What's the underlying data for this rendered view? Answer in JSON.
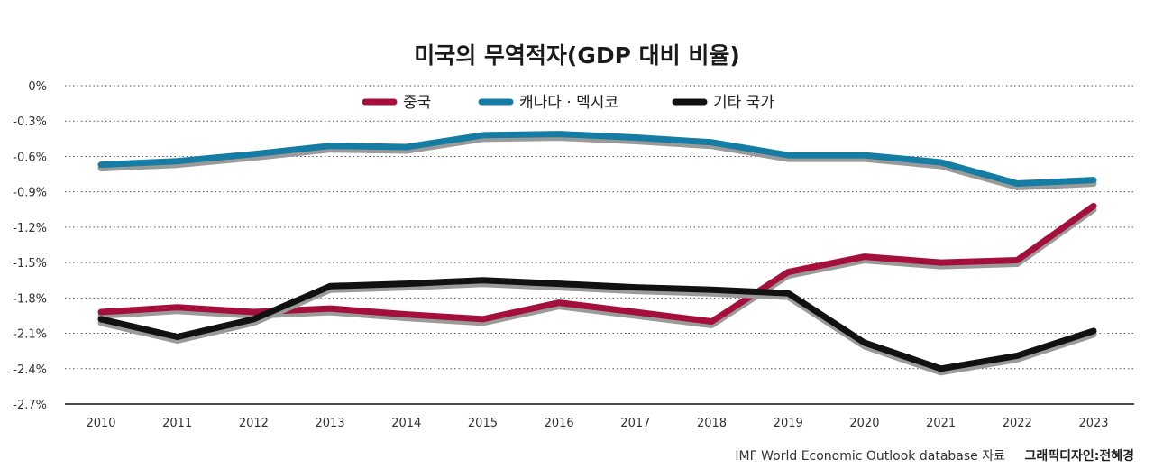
{
  "chart_data": {
    "type": "line",
    "title": "미국의 무역적자(GDP 대비 비율)",
    "x": [
      "2010",
      "2011",
      "2012",
      "2013",
      "2014",
      "2015",
      "2016",
      "2017",
      "2018",
      "2019",
      "2020",
      "2021",
      "2022",
      "2023"
    ],
    "y_ticks": [
      "0%",
      "-0.3%",
      "-0.6%",
      "-0.9%",
      "-1.2%",
      "-1.5%",
      "-1.8%",
      "-2.1%",
      "-2.4%",
      "-2.7%"
    ],
    "ylim": [
      -2.7,
      0
    ],
    "grid": "horizontal-dotted",
    "legend_position": "top-center",
    "series": [
      {
        "name": "중국",
        "color": "#a50f3c",
        "values": [
          -1.92,
          -1.88,
          -1.92,
          -1.89,
          -1.94,
          -1.98,
          -1.84,
          -1.92,
          -2.0,
          -1.58,
          -1.45,
          -1.5,
          -1.48,
          -1.02
        ]
      },
      {
        "name": "캐나다 · 멕시코",
        "color": "#157ca3",
        "values": [
          -0.67,
          -0.64,
          -0.58,
          -0.51,
          -0.52,
          -0.42,
          -0.41,
          -0.44,
          -0.48,
          -0.59,
          -0.59,
          -0.65,
          -0.83,
          -0.8
        ]
      },
      {
        "name": "기타 국가",
        "color": "#111111",
        "values": [
          -1.98,
          -2.13,
          -1.98,
          -1.7,
          -1.68,
          -1.65,
          -1.68,
          -1.71,
          -1.73,
          -1.76,
          -2.18,
          -2.4,
          -2.29,
          -2.08
        ]
      }
    ]
  },
  "footer": {
    "source": "IMF World Economic Outlook database 자료",
    "credit": "그래픽디자인:전혜경"
  }
}
